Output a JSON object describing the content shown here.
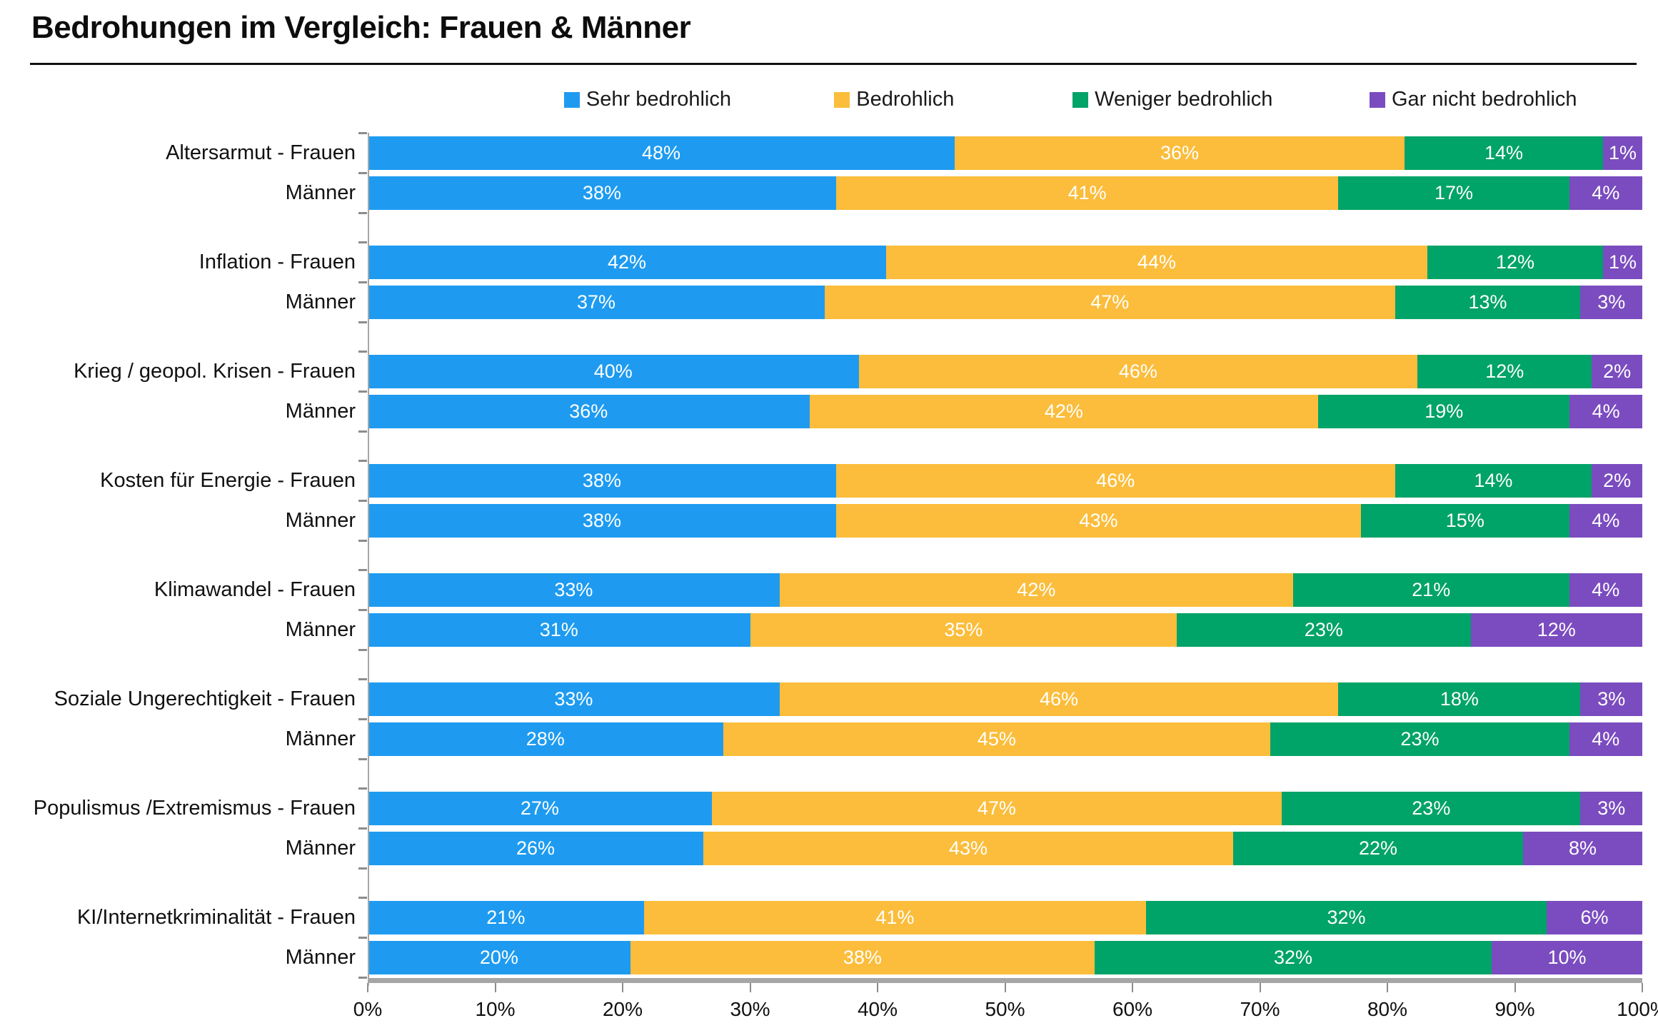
{
  "chart_data": {
    "type": "bar",
    "stacked": true,
    "orientation": "horizontal",
    "title": "Bedrohungen im Vergleich: Frauen & Männer",
    "legend_position": "top",
    "value_label_suffix": "%",
    "x_axis": {
      "min": 0,
      "max": 100,
      "ticks": [
        "0%",
        "10%",
        "20%",
        "30%",
        "40%",
        "50%",
        "60%",
        "70%",
        "80%",
        "90%",
        "100%"
      ]
    },
    "series": [
      {
        "name": "Sehr bedrohlich",
        "color": "#1E9BF0"
      },
      {
        "name": "Bedrohlich",
        "color": "#FBBD3B"
      },
      {
        "name": "Weniger bedrohlich",
        "color": "#00A368"
      },
      {
        "name": "Gar nicht bedrohlich",
        "color": "#7A4CBF"
      }
    ],
    "groups": [
      {
        "category": "Altersarmut",
        "rows": [
          {
            "label": "Altersarmut - Frauen",
            "values": [
              48,
              36,
              14,
              1
            ]
          },
          {
            "label": "Männer",
            "values": [
              38,
              41,
              17,
              4
            ]
          }
        ]
      },
      {
        "category": "Inflation",
        "rows": [
          {
            "label": "Inflation - Frauen",
            "values": [
              42,
              44,
              12,
              1
            ]
          },
          {
            "label": "Männer",
            "values": [
              37,
              47,
              13,
              3
            ]
          }
        ]
      },
      {
        "category": "Krieg / geopol. Krisen",
        "rows": [
          {
            "label": "Krieg / geopol. Krisen - Frauen",
            "values": [
              40,
              46,
              12,
              2
            ]
          },
          {
            "label": "Männer",
            "values": [
              36,
              42,
              19,
              4
            ]
          }
        ]
      },
      {
        "category": "Kosten für Energie",
        "rows": [
          {
            "label": "Kosten für Energie - Frauen",
            "values": [
              38,
              46,
              14,
              2
            ]
          },
          {
            "label": "Männer",
            "values": [
              38,
              43,
              15,
              4
            ]
          }
        ]
      },
      {
        "category": "Klimawandel",
        "rows": [
          {
            "label": "Klimawandel - Frauen",
            "values": [
              33,
              42,
              21,
              4
            ]
          },
          {
            "label": "Männer",
            "values": [
              31,
              35,
              23,
              12
            ]
          }
        ]
      },
      {
        "category": "Soziale Ungerechtigkeit",
        "rows": [
          {
            "label": "Soziale Ungerechtigkeit - Frauen",
            "values": [
              33,
              46,
              18,
              3
            ]
          },
          {
            "label": "Männer",
            "values": [
              28,
              45,
              23,
              4
            ]
          }
        ]
      },
      {
        "category": "Populismus /Extremismus",
        "rows": [
          {
            "label": "Populismus /Extremismus - Frauen",
            "values": [
              27,
              47,
              23,
              3
            ]
          },
          {
            "label": "Männer",
            "values": [
              26,
              43,
              22,
              8
            ]
          }
        ]
      },
      {
        "category": "KI/Internetkriminalität",
        "rows": [
          {
            "label": "KI/Internetkriminalität - Frauen",
            "values": [
              21,
              41,
              32,
              6
            ]
          },
          {
            "label": "Männer",
            "values": [
              20,
              38,
              32,
              10
            ]
          }
        ]
      }
    ]
  }
}
